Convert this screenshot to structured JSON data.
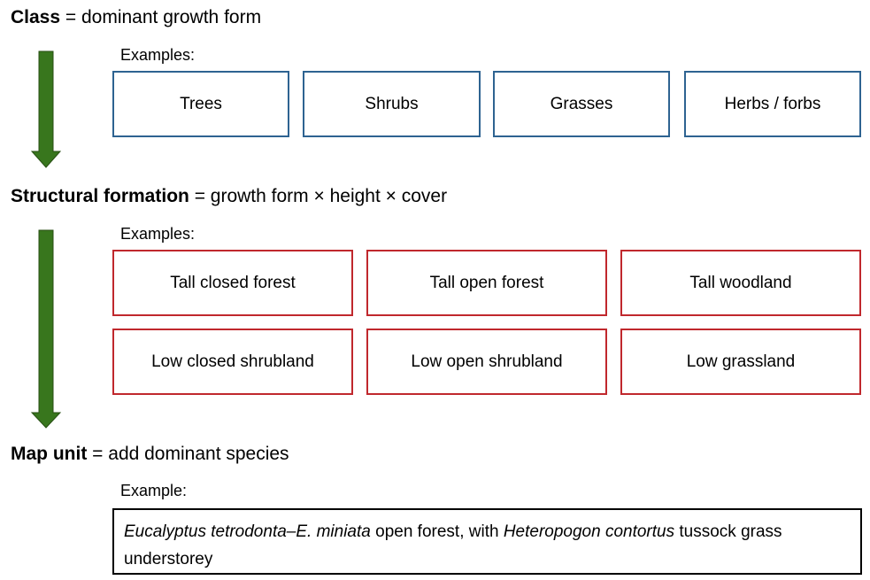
{
  "colors": {
    "arrow_fill": "#38761d",
    "arrow_stroke": "#274e13",
    "class_box_border": "#2e6391",
    "formation_box_border": "#c0282d",
    "map_unit_box_border": "#000000"
  },
  "class_section": {
    "term": "Class",
    "definition": " = dominant growth form",
    "examples_label": "Examples:",
    "boxes": [
      "Trees",
      "Shrubs",
      "Grasses",
      "Herbs / forbs"
    ]
  },
  "formation_section": {
    "term": "Structural formation",
    "definition": " = growth form × height  × cover",
    "examples_label": "Examples:",
    "boxes": [
      "Tall closed forest",
      "Tall open forest",
      "Tall woodland",
      "Low closed shrubland",
      "Low open shrubland",
      "Low grassland"
    ]
  },
  "map_unit_section": {
    "term": "Map unit",
    "definition": " = add dominant species",
    "examples_label": "Example:",
    "example": {
      "species1": "Eucalyptus tetrodonta–E. miniata",
      "text1": " open forest, with ",
      "species2": "Heteropogon contortus",
      "text2": " tussock grass understorey"
    }
  }
}
